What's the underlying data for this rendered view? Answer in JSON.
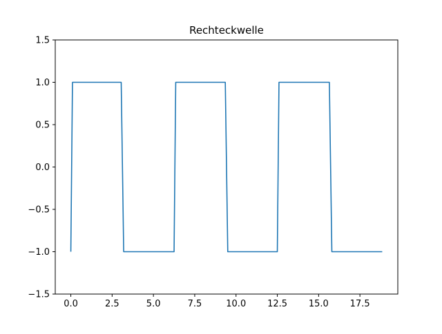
{
  "chart_data": {
    "type": "line",
    "title": "Rechteckwelle",
    "xlabel": "",
    "ylabel": "",
    "xlim": [
      -0.9425,
      19.7925
    ],
    "ylim": [
      -1.5,
      1.5
    ],
    "x_ticks": [
      0.0,
      2.5,
      5.0,
      7.5,
      10.0,
      12.5,
      15.0,
      17.5
    ],
    "x_tick_labels": [
      "0.0",
      "2.5",
      "5.0",
      "7.5",
      "10.0",
      "12.5",
      "15.0",
      "17.5"
    ],
    "y_ticks": [
      -1.5,
      -1.0,
      -0.5,
      0.0,
      0.5,
      1.0,
      1.5
    ],
    "y_tick_labels": [
      "−1.5",
      "−1.0",
      "−0.5",
      "0.0",
      "0.5",
      "1.0",
      "1.5"
    ],
    "grid": false,
    "series": [
      {
        "color": "#1f77b4",
        "x": [
          0.0,
          0.1,
          3.05,
          3.2,
          6.25,
          6.35,
          9.35,
          9.5,
          12.5,
          12.6,
          15.65,
          15.8,
          18.85
        ],
        "y": [
          -1,
          1,
          1,
          -1,
          -1,
          1,
          1,
          -1,
          -1,
          1,
          1,
          -1,
          -1
        ]
      }
    ]
  }
}
